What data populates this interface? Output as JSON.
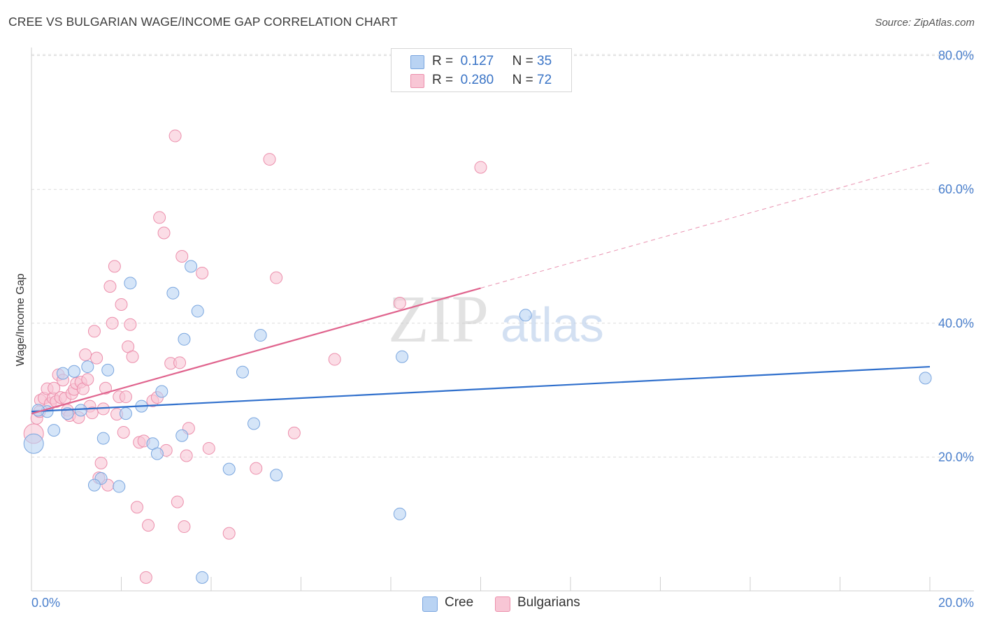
{
  "title": "CREE VS BULGARIAN WAGE/INCOME GAP CORRELATION CHART",
  "source": "Source: ZipAtlas.com",
  "watermark": {
    "zip": "ZIP",
    "atlas": "atlas"
  },
  "legend": {
    "rows": [
      {
        "r_label": "R =",
        "r_value": "0.127",
        "n_label": "N =",
        "n_value": "35"
      },
      {
        "r_label": "R =",
        "r_value": "0.280",
        "n_label": "N =",
        "n_value": "72"
      }
    ]
  },
  "bottom_legend": [
    "Cree",
    "Bulgarians"
  ],
  "colors": {
    "cree_fill": "#b9d3f3",
    "cree_stroke": "#7aa6df",
    "cree_line": "#2f6fcc",
    "bulg_fill": "#f8c6d5",
    "bulg_stroke": "#ec8fac",
    "bulg_line": "#e0648e",
    "grid": "#dcdcdc",
    "axis_text": "#4a7fcc"
  },
  "chart_data": {
    "type": "scatter",
    "title": "CREE VS BULGARIAN WAGE/INCOME GAP CORRELATION CHART",
    "xlabel": "",
    "ylabel": "Wage/Income Gap",
    "xlim": [
      0,
      20
    ],
    "ylim": [
      0,
      82
    ],
    "x_tick_labels": [
      "0.0%",
      "20.0%"
    ],
    "y_ticks": [
      20,
      40,
      60,
      80
    ],
    "y_tick_labels": [
      "20.0%",
      "40.0%",
      "60.0%",
      "80.0%"
    ],
    "series": [
      {
        "name": "Cree",
        "R": 0.127,
        "N": 35,
        "trend": {
          "x0": 0,
          "y0": 26.8,
          "x1": 20,
          "y1": 33.5,
          "dashed_from": null
        },
        "points": [
          [
            0.05,
            22.0
          ],
          [
            0.35,
            26.8
          ],
          [
            0.5,
            24.0
          ],
          [
            0.7,
            32.5
          ],
          [
            0.8,
            26.5
          ],
          [
            0.95,
            32.8
          ],
          [
            1.1,
            27.0
          ],
          [
            1.25,
            33.5
          ],
          [
            1.6,
            22.8
          ],
          [
            1.7,
            33.0
          ],
          [
            1.55,
            16.8
          ],
          [
            1.4,
            15.8
          ],
          [
            1.95,
            15.6
          ],
          [
            2.1,
            26.5
          ],
          [
            2.2,
            46.0
          ],
          [
            2.45,
            27.6
          ],
          [
            2.7,
            22.0
          ],
          [
            2.8,
            20.5
          ],
          [
            2.9,
            29.8
          ],
          [
            3.15,
            44.5
          ],
          [
            3.35,
            23.2
          ],
          [
            3.4,
            37.6
          ],
          [
            3.55,
            48.5
          ],
          [
            3.7,
            41.8
          ],
          [
            3.8,
            2.0
          ],
          [
            4.4,
            18.2
          ],
          [
            4.7,
            32.7
          ],
          [
            4.95,
            25.0
          ],
          [
            5.1,
            38.2
          ],
          [
            5.45,
            17.3
          ],
          [
            8.2,
            11.5
          ],
          [
            8.25,
            35.0
          ],
          [
            11.0,
            41.2
          ],
          [
            19.9,
            31.8
          ],
          [
            0.15,
            27.0
          ]
        ]
      },
      {
        "name": "Bulgarians",
        "R": 0.28,
        "N": 72,
        "trend": {
          "x0": 0,
          "y0": 26.5,
          "x1": 20,
          "y1": 64.0,
          "dashed_from": 10.0
        },
        "points": [
          [
            0.05,
            23.5
          ],
          [
            0.12,
            25.8
          ],
          [
            0.18,
            26.8
          ],
          [
            0.2,
            28.5
          ],
          [
            0.28,
            28.8
          ],
          [
            0.35,
            30.2
          ],
          [
            0.42,
            28.0
          ],
          [
            0.48,
            28.8
          ],
          [
            0.5,
            30.3
          ],
          [
            0.55,
            28.3
          ],
          [
            0.6,
            32.3
          ],
          [
            0.65,
            28.9
          ],
          [
            0.7,
            31.5
          ],
          [
            0.75,
            28.8
          ],
          [
            0.8,
            27.0
          ],
          [
            0.85,
            26.2
          ],
          [
            0.9,
            29.5
          ],
          [
            0.95,
            30.1
          ],
          [
            1.0,
            31.0
          ],
          [
            1.05,
            25.9
          ],
          [
            1.1,
            31.2
          ],
          [
            1.15,
            30.2
          ],
          [
            1.2,
            35.3
          ],
          [
            1.25,
            31.6
          ],
          [
            1.3,
            27.6
          ],
          [
            1.35,
            26.6
          ],
          [
            1.4,
            38.8
          ],
          [
            1.45,
            34.8
          ],
          [
            1.5,
            16.9
          ],
          [
            1.55,
            19.1
          ],
          [
            1.6,
            27.2
          ],
          [
            1.65,
            30.3
          ],
          [
            1.7,
            15.8
          ],
          [
            1.75,
            45.5
          ],
          [
            1.8,
            40.0
          ],
          [
            1.85,
            48.5
          ],
          [
            1.9,
            26.4
          ],
          [
            1.95,
            29.0
          ],
          [
            2.0,
            42.8
          ],
          [
            2.05,
            23.7
          ],
          [
            2.1,
            29.0
          ],
          [
            2.15,
            36.5
          ],
          [
            2.2,
            39.8
          ],
          [
            2.25,
            35.0
          ],
          [
            2.35,
            12.5
          ],
          [
            2.4,
            22.2
          ],
          [
            2.5,
            22.4
          ],
          [
            2.55,
            2.0
          ],
          [
            2.6,
            9.8
          ],
          [
            2.7,
            28.4
          ],
          [
            2.8,
            28.9
          ],
          [
            2.85,
            55.8
          ],
          [
            2.95,
            53.5
          ],
          [
            3.0,
            21.0
          ],
          [
            3.1,
            34.0
          ],
          [
            3.2,
            68.0
          ],
          [
            3.25,
            13.3
          ],
          [
            3.3,
            34.1
          ],
          [
            3.35,
            50.0
          ],
          [
            3.4,
            9.6
          ],
          [
            3.45,
            20.2
          ],
          [
            3.5,
            24.3
          ],
          [
            3.8,
            47.5
          ],
          [
            3.95,
            21.3
          ],
          [
            4.4,
            8.6
          ],
          [
            5.0,
            18.3
          ],
          [
            5.3,
            64.5
          ],
          [
            5.45,
            46.8
          ],
          [
            5.85,
            23.6
          ],
          [
            6.75,
            34.6
          ],
          [
            8.2,
            43.0
          ],
          [
            10.0,
            63.3
          ]
        ]
      }
    ]
  }
}
